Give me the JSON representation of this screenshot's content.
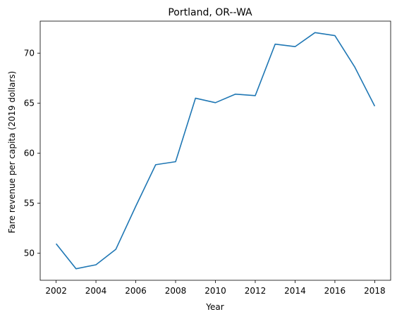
{
  "chart_data": {
    "type": "line",
    "title": "Portland, OR--WA",
    "xlabel": "Year",
    "ylabel": "Fare revenue per capita (2019 dollars)",
    "xlim": [
      2001.2,
      2018.8
    ],
    "ylim": [
      47.3,
      73.2
    ],
    "xticks": [
      2002,
      2004,
      2006,
      2008,
      2010,
      2012,
      2014,
      2016,
      2018
    ],
    "yticks": [
      50,
      55,
      60,
      65,
      70
    ],
    "grid": false,
    "legend": "none",
    "series": [
      {
        "color": "#1f77b4",
        "x": [
          2002,
          2003,
          2004,
          2005,
          2006,
          2007,
          2008,
          2009,
          2010,
          2011,
          2012,
          2013,
          2014,
          2015,
          2016,
          2017,
          2018
        ],
        "y": [
          50.95,
          48.45,
          48.85,
          50.4,
          54.7,
          58.85,
          59.15,
          65.5,
          65.05,
          65.9,
          65.75,
          70.9,
          70.65,
          72.05,
          71.75,
          68.6,
          64.7
        ]
      }
    ]
  }
}
